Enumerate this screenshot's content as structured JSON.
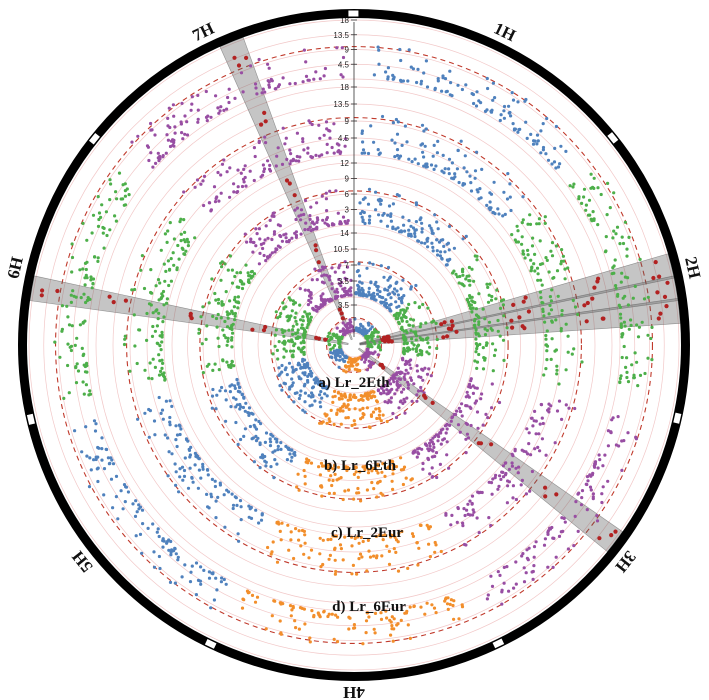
{
  "chart_data": {
    "type": "circular-manhattan",
    "chromosomes": [
      "1H",
      "2H",
      "3H",
      "4H",
      "5H",
      "6H",
      "7H"
    ],
    "chromosome_colors": {
      "1H": "#4f81bd",
      "2H": "#4daf4a",
      "3H": "#984ea3",
      "4H": "#f28e2b",
      "5H": "#4f81bd",
      "6H": "#4daf4a",
      "7H": "#984ea3"
    },
    "highlight_color": "#b22222",
    "threshold_line_color": "#c0392b",
    "tracks": [
      {
        "label": "a) Lr_2Eth",
        "axis_ticks": [
          "3.5"
        ],
        "ymax": 5
      },
      {
        "label": "b) Lr_6Eth",
        "axis_ticks": [
          "3.5",
          "7",
          "10.5",
          "14"
        ],
        "ymax": 14
      },
      {
        "label": "c) Lr_2Eur",
        "axis_ticks": [
          "3",
          "6",
          "9",
          "12"
        ],
        "ymax": 12
      },
      {
        "label": "d) Lr_6Eur",
        "axis_ticks": [
          "4.5",
          "9",
          "13.5",
          "18"
        ],
        "ymax": 18
      },
      {
        "label": "",
        "axis_ticks": [
          "4.5",
          "9",
          "13.5",
          "18"
        ],
        "ymax": 18
      }
    ],
    "highlighted_regions": [
      {
        "chromosome": "7H",
        "position_deg": -22
      },
      {
        "chromosome": "6H",
        "position_deg": -80
      },
      {
        "chromosome": "2H",
        "position_deg": 76
      },
      {
        "chromosome": "2H",
        "position_deg": 80
      },
      {
        "chromosome": "2H",
        "position_deg": 84
      },
      {
        "chromosome": "3H",
        "position_deg": 127
      }
    ],
    "grid": true
  }
}
